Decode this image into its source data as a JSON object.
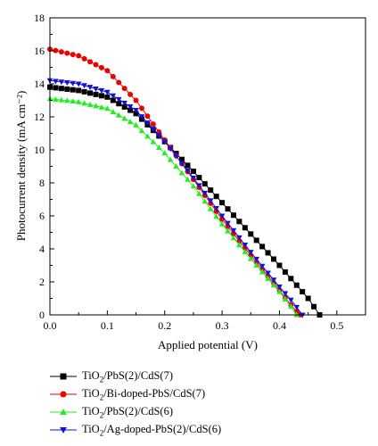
{
  "chart_data": {
    "type": "scatter",
    "xlabel": "Applied potential (V)",
    "ylabel": "Photocurrent density (mA cm⁻²)",
    "xlim": [
      0.0,
      0.55
    ],
    "ylim": [
      0,
      18
    ],
    "xticks": [
      "0.0",
      "0.1",
      "0.2",
      "0.3",
      "0.4",
      "0.5"
    ],
    "yticks": [
      "0",
      "2",
      "4",
      "6",
      "8",
      "10",
      "12",
      "14",
      "16",
      "18"
    ],
    "grid": false,
    "legend_position": "bottom-left",
    "series": [
      {
        "name": "TiO2/PbS(2)/CdS(7)",
        "label_parts": [
          "TiO",
          "2",
          "/PbS(2)/CdS(7)"
        ],
        "marker": "square",
        "color": "#000000",
        "x": [
          0.0,
          0.05,
          0.1,
          0.15,
          0.2,
          0.25,
          0.3,
          0.35,
          0.4,
          0.43,
          0.45,
          0.46,
          0.47
        ],
        "y": [
          13.8,
          13.6,
          13.2,
          12.2,
          10.5,
          8.7,
          6.8,
          4.9,
          3.0,
          1.8,
          1.0,
          0.5,
          0.0
        ]
      },
      {
        "name": "TiO2/Bi-doped-PbS/CdS(7)",
        "label_parts": [
          "TiO",
          "2",
          "/Bi-doped-PbS/CdS(7)"
        ],
        "marker": "circle",
        "color": "#ee0000",
        "x": [
          0.0,
          0.05,
          0.1,
          0.15,
          0.2,
          0.25,
          0.3,
          0.35,
          0.4,
          0.42,
          0.435
        ],
        "y": [
          16.1,
          15.7,
          14.8,
          13.0,
          10.6,
          8.2,
          5.8,
          3.6,
          1.5,
          0.6,
          0.0
        ]
      },
      {
        "name": "TiO2/PbS(2)/CdS(6)",
        "label_parts": [
          "TiO",
          "2",
          "/PbS(2)/CdS(6)"
        ],
        "marker": "triangle-up",
        "color": "#22ee22",
        "x": [
          0.0,
          0.05,
          0.1,
          0.15,
          0.2,
          0.25,
          0.3,
          0.35,
          0.4,
          0.42,
          0.43
        ],
        "y": [
          13.1,
          12.9,
          12.5,
          11.5,
          9.8,
          7.8,
          5.5,
          3.4,
          1.4,
          0.5,
          0.0
        ]
      },
      {
        "name": "TiO2/Ag-doped-PbS(2)/CdS(6)",
        "label_parts": [
          "TiO",
          "2",
          "/Ag-doped-PbS(2)/CdS(6)"
        ],
        "marker": "triangle-down",
        "color": "#1111dd",
        "x": [
          0.0,
          0.05,
          0.1,
          0.15,
          0.2,
          0.25,
          0.3,
          0.35,
          0.4,
          0.425,
          0.44
        ],
        "y": [
          14.2,
          14.0,
          13.5,
          12.4,
          10.5,
          8.3,
          6.0,
          3.8,
          1.7,
          0.7,
          0.0
        ]
      }
    ]
  }
}
